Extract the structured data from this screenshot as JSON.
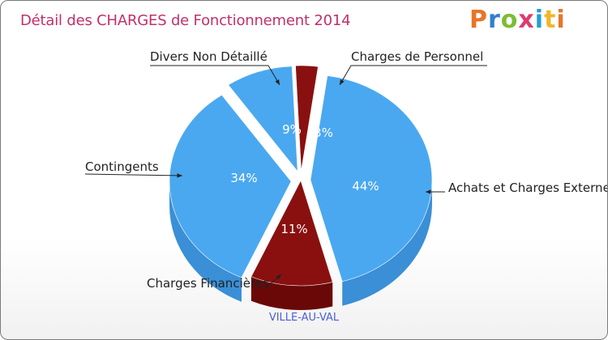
{
  "title": "Détail des CHARGES de Fonctionnement 2014",
  "logo": {
    "text": "Proxiti",
    "letter_colors": [
      "#e8752a",
      "#2f7fd0",
      "#7cbd33",
      "#e03a6e",
      "#1f9fd8",
      "#f2b52a",
      "#e8752a"
    ]
  },
  "subtitle": "VILLE-AU-VAL",
  "chart_data": {
    "type": "pie",
    "title": "Détail des CHARGES de Fonctionnement 2014",
    "subtitle": "VILLE-AU-VAL",
    "slices": [
      {
        "label": "Achats et Charges Externes",
        "value": 44,
        "pct_label": "44%",
        "color": "#4aa8f0",
        "side_color": "#3a8fd6",
        "exploded": true
      },
      {
        "label": "Charges Financières",
        "value": 11,
        "pct_label": "11%",
        "color": "#8a1010",
        "side_color": "#6a0808",
        "exploded": false
      },
      {
        "label": "Contingents",
        "value": 34,
        "pct_label": "34%",
        "color": "#4aa8f0",
        "side_color": "#3a8fd6",
        "exploded": true
      },
      {
        "label": "Divers Non Détaillé",
        "value": 9,
        "pct_label": "9%",
        "color": "#4aa8f0",
        "side_color": "#3a8fd6",
        "exploded": true
      },
      {
        "label": "Charges de Personnel",
        "value": 3,
        "pct_label": "3%",
        "color": "#8a1010",
        "side_color": "#6a0808",
        "exploded": true
      }
    ]
  }
}
